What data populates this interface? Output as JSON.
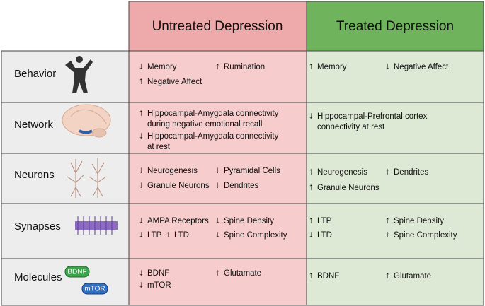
{
  "columns": [
    "Untreated Depression",
    "Treated Depression"
  ],
  "rows": [
    {
      "label": "Behavior",
      "untreated": [
        {
          "arrow": "↓",
          "lines": [
            "Memory"
          ]
        },
        {
          "arrow": "↑",
          "lines": [
            "Rumination"
          ]
        },
        {
          "arrow": "↑",
          "lines": [
            "Negative Affect"
          ]
        }
      ],
      "treated": [
        {
          "arrow": "↑",
          "lines": [
            "Memory"
          ]
        },
        {
          "arrow": "↓",
          "lines": [
            "Negative Affect"
          ]
        }
      ]
    },
    {
      "label": "Network",
      "untreated": [
        {
          "arrow": "↑",
          "lines": [
            "Hippocampal-Amygdala connectivity",
            "during negative emotional recall"
          ]
        },
        {
          "arrow": "↓",
          "lines": [
            "Hippocampal-Amygdala connectivity",
            "at rest"
          ]
        }
      ],
      "treated": [
        {
          "arrow": "↓",
          "lines": [
            "Hippocampal-Prefrontal cortex",
            "connectivity at rest"
          ]
        }
      ]
    },
    {
      "label": "Neurons",
      "untreated": [
        {
          "arrow": "↓",
          "lines": [
            "Neurogenesis"
          ]
        },
        {
          "arrow": "↓",
          "lines": [
            "Pyramidal Cells"
          ]
        },
        {
          "arrow": "↓",
          "lines": [
            "Granule Neurons"
          ]
        },
        {
          "arrow": "↓",
          "lines": [
            "Dendrites"
          ]
        }
      ],
      "treated": [
        {
          "arrow": "↑",
          "lines": [
            "Neurogenesis"
          ]
        },
        {
          "arrow": "↑",
          "lines": [
            "Dendrites"
          ]
        },
        {
          "arrow": "↑",
          "lines": [
            "Granule Neurons"
          ]
        }
      ]
    },
    {
      "label": "Synapses",
      "untreated": [
        {
          "arrow": "↓",
          "lines": [
            "AMPA Receptors"
          ]
        },
        {
          "arrow": "↓",
          "lines": [
            "Spine Density"
          ]
        },
        {
          "arrow": "↓",
          "lines": [
            "LTP"
          ]
        },
        {
          "arrow": "↑",
          "lines": [
            "LTD"
          ]
        },
        {
          "arrow": "↓",
          "lines": [
            "Spine Complexity"
          ]
        }
      ],
      "treated": [
        {
          "arrow": "↑",
          "lines": [
            "LTP"
          ]
        },
        {
          "arrow": "↑",
          "lines": [
            "Spine Density"
          ]
        },
        {
          "arrow": "↓",
          "lines": [
            "LTD"
          ]
        },
        {
          "arrow": "↑",
          "lines": [
            "Spine Complexity"
          ]
        }
      ]
    },
    {
      "label": "Molecules",
      "untreated": [
        {
          "arrow": "↓",
          "lines": [
            "BDNF"
          ]
        },
        {
          "arrow": "↑",
          "lines": [
            "Glutamate"
          ]
        },
        {
          "arrow": "↓",
          "lines": [
            "mTOR"
          ]
        }
      ],
      "treated": [
        {
          "arrow": "↑",
          "lines": [
            "BDNF"
          ]
        },
        {
          "arrow": "↑",
          "lines": [
            "Glutamate"
          ]
        }
      ]
    }
  ],
  "badges": [
    "BDNF",
    "mTOR"
  ]
}
